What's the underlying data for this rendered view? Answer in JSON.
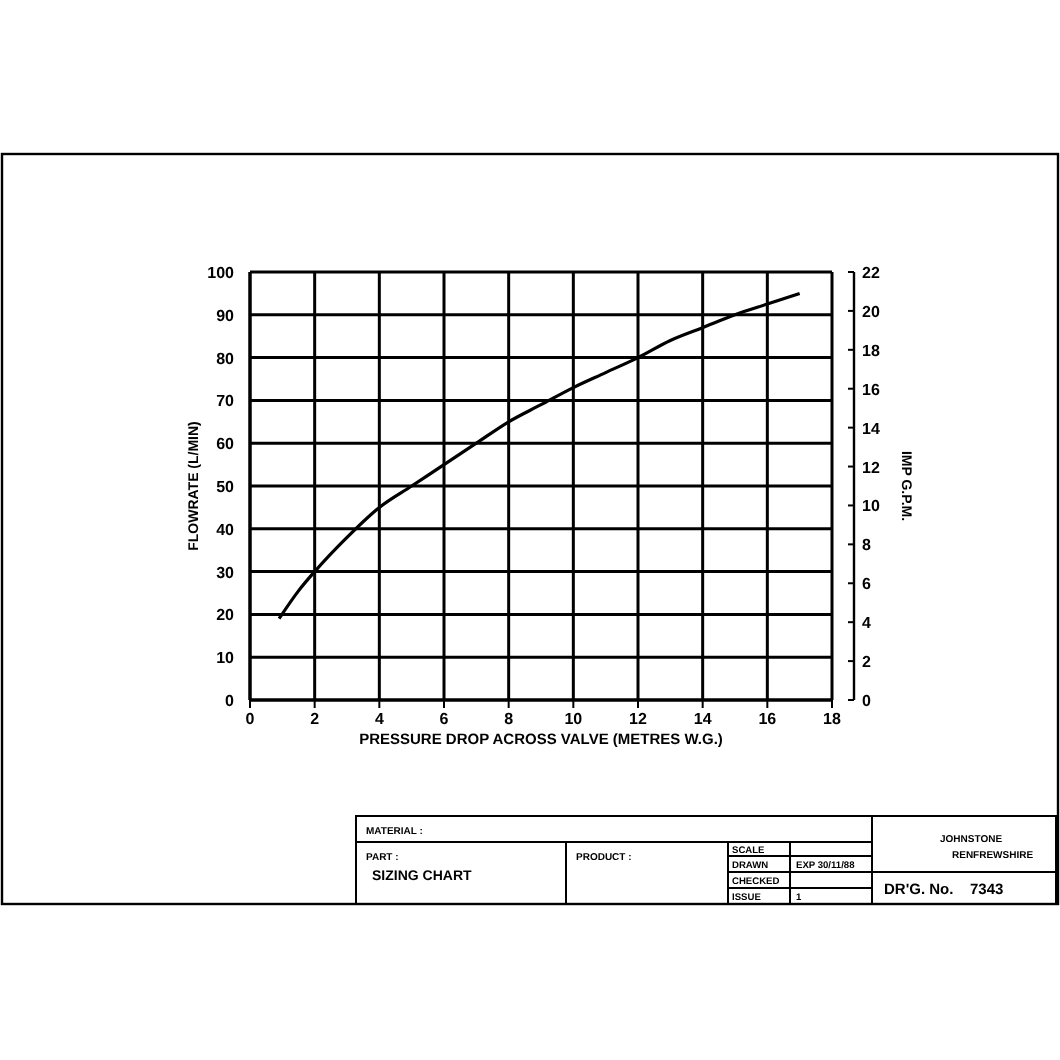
{
  "chart_data": {
    "type": "line",
    "xlabel": "PRESSURE DROP ACROSS VALVE (METRES W.G.)",
    "ylabel": "FLOWRATE (L/MIN)",
    "y2label": "IMP G.P.M.",
    "x": [
      0.9,
      1.5,
      2,
      3,
      4,
      5,
      6,
      7,
      8,
      9,
      10,
      11,
      12,
      13,
      14,
      15,
      16,
      17
    ],
    "series": [
      {
        "color": "#000000",
        "values": [
          19,
          25.5,
          30,
          38,
          45,
          50,
          55,
          60,
          65,
          69,
          73,
          76.5,
          80,
          84,
          87,
          90,
          92.5,
          95
        ]
      }
    ],
    "xlim": [
      0,
      18
    ],
    "xticks": [
      0,
      2,
      4,
      6,
      8,
      10,
      12,
      14,
      16,
      18
    ],
    "ylim": [
      0,
      100
    ],
    "yticks": [
      0,
      10,
      20,
      30,
      40,
      50,
      60,
      70,
      80,
      90,
      100
    ],
    "y2lim": [
      0,
      22
    ],
    "y2ticks": [
      0,
      2,
      4,
      6,
      8,
      10,
      12,
      14,
      16,
      18,
      20,
      22
    ],
    "grid": true,
    "marker": "none",
    "line_style": "solid",
    "annotations": [
      "MATERIAL :",
      "PART :",
      "SIZING CHART",
      "PRODUCT :",
      "SCALE",
      "DRAWN",
      "EXP 30/11/88",
      "CHECKED",
      "ISSUE",
      "1",
      "JOHNSTONE",
      "RENFREWSHIRE",
      "DR'G. No.",
      "7343"
    ]
  }
}
